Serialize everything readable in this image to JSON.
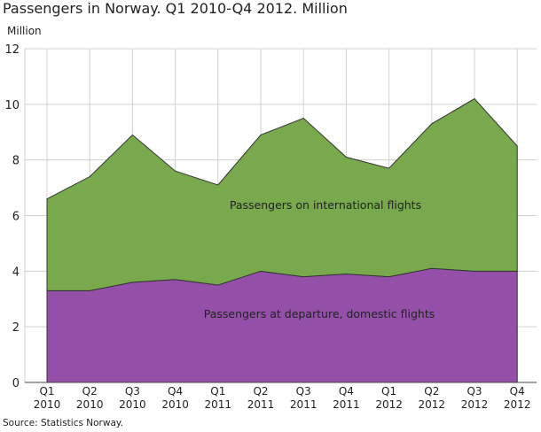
{
  "chart_data": {
    "type": "area",
    "stacked": true,
    "title": "Passengers in Norway. Q1 2010-Q4 2012. Million",
    "ylabel": "Million",
    "xlabel": "",
    "source": "Source: Statistics Norway.",
    "ylim": [
      0,
      12
    ],
    "yticks": [
      0,
      2,
      4,
      6,
      8,
      10,
      12
    ],
    "grid": true,
    "categories": [
      [
        "Q1",
        "2010"
      ],
      [
        "Q2",
        "2010"
      ],
      [
        "Q3",
        "2010"
      ],
      [
        "Q4",
        "2010"
      ],
      [
        "Q1",
        "2011"
      ],
      [
        "Q2",
        "2011"
      ],
      [
        "Q3",
        "2011"
      ],
      [
        "Q4",
        "2011"
      ],
      [
        "Q1",
        "2012"
      ],
      [
        "Q2",
        "2012"
      ],
      [
        "Q3",
        "2012"
      ],
      [
        "Q4",
        "2012"
      ]
    ],
    "series": [
      {
        "name": "Passengers at departure, domestic flights",
        "color": "#9450a9",
        "values": [
          3.3,
          3.3,
          3.6,
          3.7,
          3.5,
          4.0,
          3.8,
          3.9,
          3.8,
          4.1,
          4.0,
          4.0
        ]
      },
      {
        "name": "Passengers on international flights",
        "color": "#78a94c",
        "values": [
          3.3,
          4.1,
          5.3,
          3.9,
          3.6,
          4.9,
          5.7,
          4.2,
          3.9,
          5.2,
          6.2,
          4.5
        ]
      }
    ]
  }
}
